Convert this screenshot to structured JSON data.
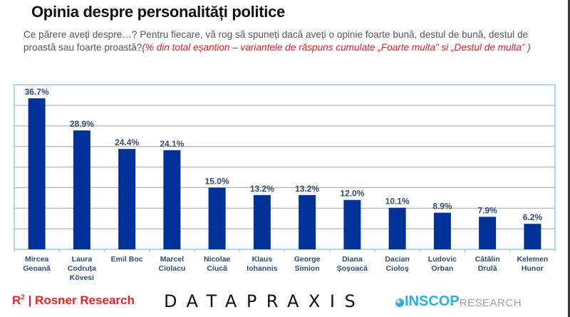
{
  "header": {
    "title": "Opinia despre personalități politice",
    "question": "Ce părere aveți despre…? Pentru fiecare, vă rog să spuneți dacă aveți o opinie foarte bună, destul de bună, destul de proastă sau foarte proastă?",
    "note": "(% din total eșantion – variantele de răspuns cumulate „Foarte multa” si „Destul de multa” )"
  },
  "colors": {
    "bar": "#003399",
    "value_label": "#2d4e7a",
    "category_label": "#2d4e7a",
    "frame": "#8fcbe8",
    "grid": "#b3b3b3"
  },
  "chart_data": {
    "type": "bar",
    "title": "Opinia despre personalități politice",
    "xlabel": "",
    "ylabel": "",
    "ylim": [
      0,
      40
    ],
    "grid": true,
    "grid_step": 5,
    "legend": "none",
    "categories": [
      [
        "Mircea",
        "Geoană"
      ],
      [
        "Laura",
        "Codruța",
        "Kövesi"
      ],
      [
        "Emil Boc"
      ],
      [
        "Marcel",
        "Ciolacu"
      ],
      [
        "Nicolae",
        "Ciucă"
      ],
      [
        "Klaus",
        "Iohannis"
      ],
      [
        "George",
        "Simion"
      ],
      [
        "Diana",
        "Șoșoacă"
      ],
      [
        "Dacian",
        "Cioloș"
      ],
      [
        "Ludovic",
        "Orban"
      ],
      [
        "Cătălin",
        "Drulă"
      ],
      [
        "Kelemen",
        "Hunor"
      ]
    ],
    "values": [
      36.7,
      28.9,
      24.4,
      24.1,
      15.0,
      13.2,
      13.2,
      12.0,
      10.1,
      8.9,
      7.9,
      6.2
    ],
    "value_labels": [
      "36.7%",
      "28.9%",
      "24.4%",
      "24.1%",
      "15.0%",
      "13.2%",
      "13.2%",
      "12.0%",
      "10.1%",
      "8.9%",
      "7.9%",
      "6.2%"
    ]
  },
  "footer": {
    "rosner_prefix": "R",
    "rosner_sup": "2",
    "rosner_text": " | Rosner Research",
    "datapraxis": "DATAPRAXIS",
    "inscop_bold": "INSCOP",
    "inscop_light": "RESEARCH"
  }
}
